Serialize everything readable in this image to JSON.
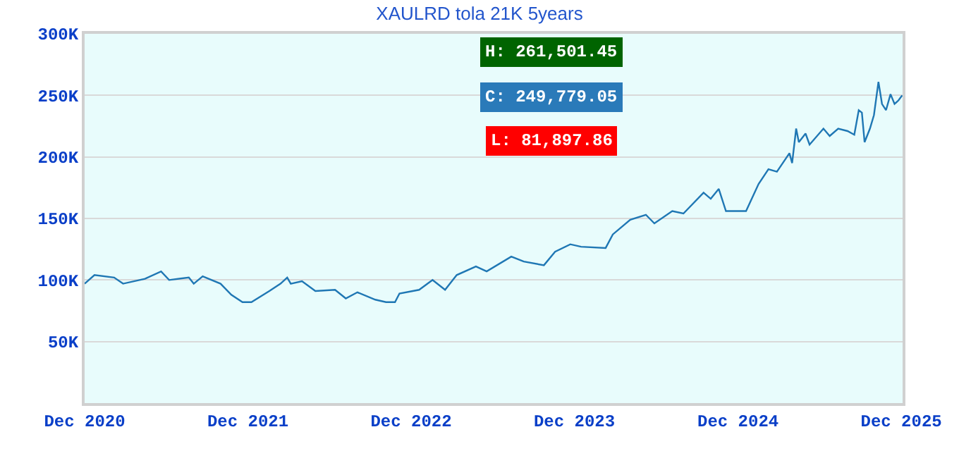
{
  "chart_data": {
    "type": "line",
    "title": "XAULRD tola 21K 5years",
    "x": [
      "2020-12-01",
      "2020-12-23",
      "2021-02-05",
      "2021-02-25",
      "2021-04-15",
      "2021-05-21",
      "2021-06-08",
      "2021-07-22",
      "2021-08-02",
      "2021-08-22",
      "2021-10-01",
      "2021-10-25",
      "2021-11-19",
      "2021-12-09",
      "2022-01-18",
      "2022-02-12",
      "2022-02-27",
      "2022-03-07",
      "2022-04-01",
      "2022-05-01",
      "2022-06-14",
      "2022-07-08",
      "2022-08-03",
      "2022-09-12",
      "2022-10-06",
      "2022-10-26",
      "2022-11-05",
      "2022-12-19",
      "2023-01-18",
      "2023-02-15",
      "2023-03-13",
      "2023-04-25",
      "2023-05-19",
      "2023-07-13",
      "2023-08-10",
      "2023-09-24",
      "2023-10-19",
      "2023-11-22",
      "2023-12-16",
      "2024-02-09",
      "2024-02-25",
      "2024-04-04",
      "2024-05-09",
      "2024-05-28",
      "2024-07-07",
      "2024-08-01",
      "2024-09-15",
      "2024-10-01",
      "2024-10-19",
      "2024-11-04",
      "2024-12-19",
      "2025-01-16",
      "2025-02-07",
      "2025-02-26",
      "2025-03-26",
      "2025-04-01",
      "2025-04-10",
      "2025-04-16",
      "2025-05-01",
      "2025-05-10",
      "2025-06-10",
      "2025-06-24",
      "2025-07-13",
      "2025-08-03",
      "2025-08-18",
      "2025-08-28",
      "2025-09-04",
      "2025-09-10",
      "2025-09-22",
      "2025-10-01",
      "2025-10-11",
      "2025-10-19",
      "2025-10-28",
      "2025-11-07",
      "2025-11-16",
      "2025-11-25",
      "2025-12-03"
    ],
    "series": [
      {
        "color": "#1f77b4",
        "values": [
          97000,
          104000,
          102000,
          97000,
          101000,
          107000,
          100000,
          102000,
          97000,
          103000,
          97000,
          88000,
          82000,
          82000,
          91000,
          97000,
          102000,
          97000,
          99000,
          91000,
          92000,
          85000,
          90000,
          84000,
          82000,
          82000,
          89000,
          92000,
          100000,
          92000,
          104000,
          111000,
          107000,
          119000,
          115000,
          112000,
          123000,
          129000,
          127000,
          126000,
          137000,
          149000,
          153000,
          146000,
          156000,
          154000,
          171000,
          166000,
          174000,
          156000,
          156000,
          178000,
          190000,
          188000,
          203000,
          195000,
          223000,
          212000,
          219000,
          210000,
          223000,
          217000,
          223000,
          221000,
          218000,
          238000,
          236000,
          212000,
          223000,
          234000,
          261000,
          243000,
          238000,
          251000,
          243000,
          246000,
          250000
        ]
      }
    ],
    "ylim": [
      0,
      300000
    ],
    "yticks": [
      {
        "value": 50000,
        "label": "50K"
      },
      {
        "value": 100000,
        "label": "100K"
      },
      {
        "value": 150000,
        "label": "150K"
      },
      {
        "value": 200000,
        "label": "200K"
      },
      {
        "value": 250000,
        "label": "250K"
      },
      {
        "value": 300000,
        "label": "300K"
      }
    ],
    "xlim": [
      "2020-12-01",
      "2025-12-04"
    ],
    "xticks": [
      {
        "value": "2020-12-01",
        "label": "Dec 2020"
      },
      {
        "value": "2021-12-01",
        "label": "Dec 2021"
      },
      {
        "value": "2022-12-01",
        "label": "Dec 2022"
      },
      {
        "value": "2023-12-01",
        "label": "Dec 2023"
      },
      {
        "value": "2024-12-01",
        "label": "Dec 2024"
      },
      {
        "value": "2025-12-01",
        "label": "Dec 2025"
      }
    ],
    "annotations": [
      "H: 261,501.45",
      "C: 249,779.05",
      "L: 81,897.86"
    ],
    "grid": "y",
    "marker": "none",
    "line_style": "solid"
  }
}
